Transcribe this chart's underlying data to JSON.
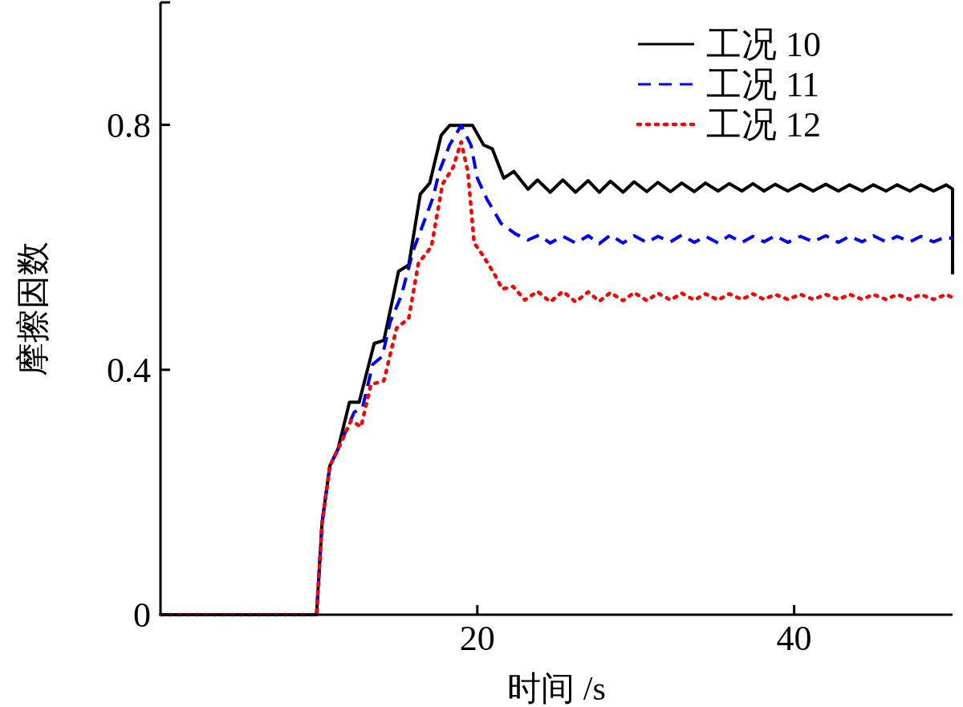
{
  "chart_data": {
    "type": "line",
    "xlabel": "时间 /s",
    "ylabel": "摩擦因数",
    "xlim": [
      0,
      50
    ],
    "ylim": [
      0,
      1
    ],
    "xticks": [
      20,
      40
    ],
    "yticks": [
      0,
      0.4,
      0.8,
      {
        "value": 1,
        "label": null
      }
    ],
    "grid": false,
    "legend": "top right",
    "marker": "none",
    "series": [
      {
        "name": "工况 10",
        "color": "#000000",
        "line_style": "solid",
        "x": [
          0,
          9.85,
          10.2,
          10.69,
          11.2,
          11.93,
          12.54,
          13.49,
          14.1,
          15.03,
          15.67,
          16.4,
          17.0,
          17.72,
          18.25,
          19.7,
          20.4,
          20.94,
          21.67,
          22.3,
          23.2,
          23.8,
          24.6,
          25.4,
          26.2,
          27.0,
          27.7,
          28.4,
          29.2,
          29.9,
          30.7,
          31.4,
          32.2,
          32.9,
          33.7,
          34.4,
          35.2,
          35.9,
          36.7,
          37.4,
          38.1,
          38.8,
          39.6,
          40.4,
          41.2,
          42.0,
          42.8,
          43.5,
          44.3,
          45.0,
          45.8,
          46.5,
          47.3,
          48.0,
          48.8,
          49.6,
          50,
          50
        ],
        "values": [
          0,
          0,
          0.15,
          0.243,
          0.27,
          0.347,
          0.347,
          0.443,
          0.448,
          0.561,
          0.571,
          0.687,
          0.705,
          0.783,
          0.799,
          0.799,
          0.767,
          0.761,
          0.713,
          0.724,
          0.695,
          0.71,
          0.69,
          0.71,
          0.69,
          0.709,
          0.69,
          0.708,
          0.69,
          0.707,
          0.691,
          0.706,
          0.691,
          0.705,
          0.691,
          0.705,
          0.692,
          0.704,
          0.692,
          0.704,
          0.692,
          0.703,
          0.692,
          0.703,
          0.692,
          0.703,
          0.692,
          0.702,
          0.692,
          0.702,
          0.692,
          0.702,
          0.692,
          0.702,
          0.692,
          0.702,
          0.695,
          0.556
        ]
      },
      {
        "name": "工况 11",
        "color": "#0000ff",
        "line_style": "dashed",
        "x": [
          0,
          9.85,
          10.2,
          10.69,
          11.2,
          12.23,
          12.74,
          13.4,
          14.0,
          14.5,
          15.2,
          15.97,
          17.2,
          17.6,
          18.25,
          18.98,
          19.6,
          20.0,
          20.6,
          21.5,
          22.4,
          23.2,
          23.9,
          24.6,
          25.4,
          26.2,
          27.0,
          27.7,
          28.4,
          29.2,
          29.9,
          30.7,
          31.4,
          32.2,
          32.9,
          33.7,
          34.4,
          35.2,
          35.9,
          36.7,
          37.4,
          38.1,
          38.8,
          39.6,
          40.4,
          41.2,
          42.0,
          42.8,
          43.5,
          44.3,
          45.0,
          45.8,
          46.5,
          47.3,
          48.0,
          48.8,
          49.6,
          50
        ],
        "values": [
          0,
          0,
          0.15,
          0.243,
          0.27,
          0.331,
          0.337,
          0.409,
          0.422,
          0.478,
          0.521,
          0.596,
          0.681,
          0.724,
          0.767,
          0.799,
          0.767,
          0.713,
          0.679,
          0.639,
          0.622,
          0.612,
          0.62,
          0.607,
          0.618,
          0.607,
          0.619,
          0.606,
          0.62,
          0.607,
          0.619,
          0.608,
          0.618,
          0.609,
          0.62,
          0.608,
          0.618,
          0.607,
          0.619,
          0.608,
          0.618,
          0.609,
          0.619,
          0.608,
          0.618,
          0.609,
          0.619,
          0.608,
          0.618,
          0.609,
          0.619,
          0.609,
          0.618,
          0.609,
          0.618,
          0.609,
          0.617,
          0.614
        ]
      },
      {
        "name": "工况 12",
        "color": "#ff0000",
        "line_style": "dotted",
        "x": [
          0,
          9.85,
          10.2,
          10.69,
          11.2,
          12.03,
          12.66,
          13.28,
          14.1,
          14.9,
          15.67,
          16.28,
          17.1,
          17.8,
          18.46,
          18.98,
          19.4,
          19.8,
          20.4,
          21.15,
          21.57,
          22.26,
          23.0,
          23.8,
          24.6,
          25.4,
          26.2,
          27.0,
          27.7,
          28.4,
          29.2,
          29.9,
          30.7,
          31.4,
          32.2,
          32.9,
          33.7,
          34.4,
          35.2,
          35.9,
          36.7,
          37.4,
          38.1,
          38.8,
          39.6,
          40.4,
          41.2,
          42.0,
          42.8,
          43.5,
          44.3,
          45.0,
          45.8,
          46.5,
          47.3,
          48.0,
          48.8,
          49.6,
          50
        ],
        "values": [
          0,
          0,
          0.15,
          0.243,
          0.27,
          0.317,
          0.307,
          0.376,
          0.382,
          0.468,
          0.484,
          0.574,
          0.601,
          0.703,
          0.73,
          0.772,
          0.724,
          0.607,
          0.585,
          0.553,
          0.532,
          0.536,
          0.514,
          0.528,
          0.511,
          0.528,
          0.511,
          0.527,
          0.512,
          0.526,
          0.513,
          0.526,
          0.513,
          0.525,
          0.514,
          0.525,
          0.514,
          0.524,
          0.514,
          0.524,
          0.515,
          0.524,
          0.515,
          0.523,
          0.515,
          0.523,
          0.515,
          0.523,
          0.515,
          0.523,
          0.515,
          0.523,
          0.515,
          0.523,
          0.515,
          0.523,
          0.515,
          0.523,
          0.518
        ]
      }
    ]
  }
}
